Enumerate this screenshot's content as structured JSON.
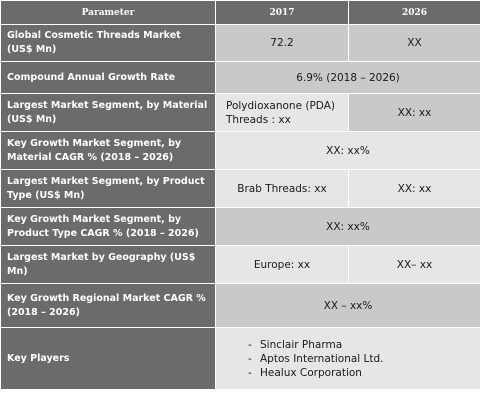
{
  "header": {
    "parameter": "Parameter",
    "year1": "2017",
    "year2": "2026"
  },
  "rows": [
    {
      "label": "Global Cosmetic Threads Market (US$ Mn)",
      "v2017": "72.2",
      "v2026": "XX"
    },
    {
      "label": "Compound Annual Growth Rate",
      "span": "6.9% (2018 – 2026)"
    },
    {
      "label": "Largest Market Segment, by Material (US$ Mn)",
      "v2017": "Polydioxanone (PDA) Threads : xx",
      "v2026": "XX: xx"
    },
    {
      "label": "Key Growth Market Segment, by Material CAGR % (2018 – 2026)",
      "span": "XX: xx%"
    },
    {
      "label": "Largest Market Segment, by Product Type (US$ Mn)",
      "v2017": "Brab Threads: xx",
      "v2026": "XX: xx"
    },
    {
      "label": "Key Growth Market Segment, by Product Type CAGR % (2018 – 2026)",
      "span": "XX: xx%"
    },
    {
      "label": "Largest Market by Geography (US$ Mn)",
      "v2017": "Europe: xx",
      "v2026": "XX– xx"
    },
    {
      "label": "Key Growth Regional Market CAGR % (2018 – 2026)",
      "span": "XX – xx%"
    },
    {
      "label": "Key Players",
      "players": [
        "Sinclair Pharma",
        "Aptos International Ltd.",
        "Healux Corporation"
      ]
    }
  ]
}
